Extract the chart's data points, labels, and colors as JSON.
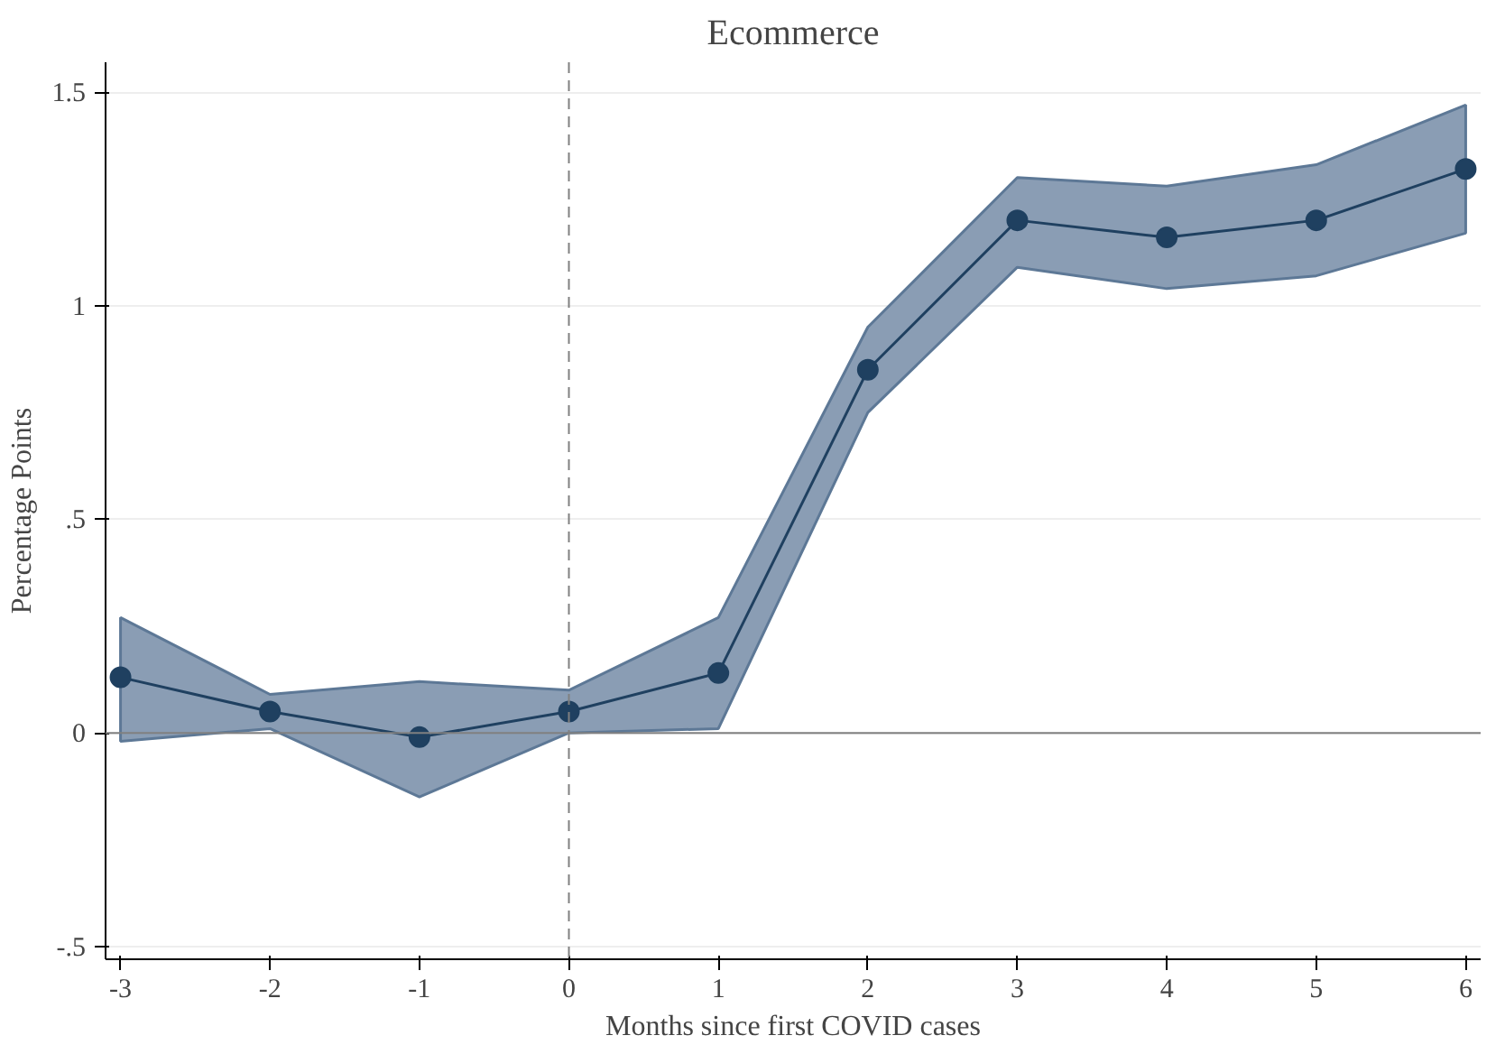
{
  "chart_data": {
    "type": "line",
    "title": "Ecommerce",
    "xlabel": "Months since first COVID cases",
    "ylabel": "Percentage Points",
    "x": [
      -3,
      -2,
      -1,
      0,
      1,
      2,
      3,
      4,
      5,
      6
    ],
    "series": [
      {
        "color": "#1f4060",
        "values": [
          0.13,
          0.05,
          -0.01,
          0.05,
          0.14,
          0.85,
          1.2,
          1.16,
          1.2,
          1.32
        ],
        "lower": [
          -0.02,
          0.01,
          -0.15,
          0.0,
          0.01,
          0.75,
          1.09,
          1.04,
          1.07,
          1.17
        ],
        "upper": [
          0.27,
          0.09,
          0.12,
          0.1,
          0.27,
          0.95,
          1.3,
          1.28,
          1.33,
          1.47
        ]
      }
    ],
    "xlim": [
      -3.1,
      6.1
    ],
    "ylim": [
      -0.53,
      1.57
    ],
    "xticks": [
      -3,
      -2,
      -1,
      0,
      1,
      2,
      3,
      4,
      5,
      6
    ],
    "yticks": [
      {
        "value": -0.5,
        "label": "-.5"
      },
      0,
      {
        "value": 0.5,
        "label": ".5"
      },
      1,
      1.5
    ],
    "ref_lines": [
      {
        "axis": "x",
        "value": 0,
        "color": "#808080",
        "line_style": "dashed"
      },
      {
        "axis": "y",
        "value": 0,
        "color": "#808080",
        "line_style": "solid"
      }
    ],
    "grid": "y",
    "marker": "circle",
    "line_style": "solid"
  }
}
